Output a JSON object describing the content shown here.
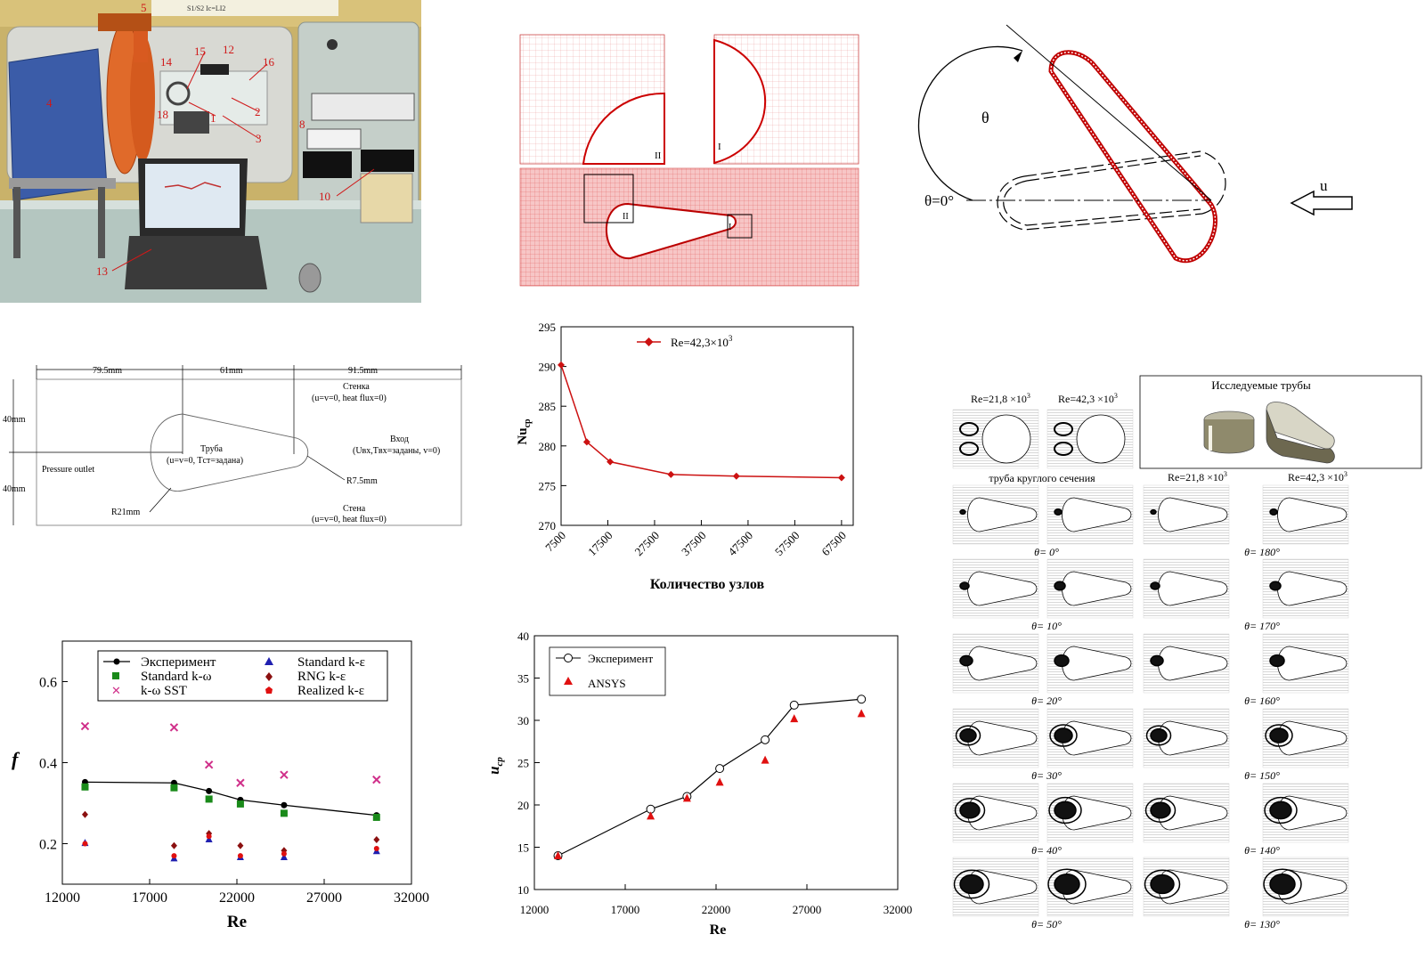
{
  "photo": {
    "labels": [
      "5",
      "15",
      "12",
      "14",
      "16",
      "4",
      "18",
      "1",
      "2",
      "3",
      "8",
      "13",
      "10"
    ],
    "ruler_text": "S1/S2   Ic=LI2"
  },
  "mesh": {
    "label_I": "I",
    "label_II": "II"
  },
  "geometry": {
    "theta": "θ",
    "theta0": "θ=0°",
    "u": "u"
  },
  "domain": {
    "dim1": "79.5mm",
    "dim2": "61mm",
    "dim3": "91.5mm",
    "h1": "40mm",
    "h2": "40mm",
    "wall_top": "Стенка",
    "wall_top_cond": "(u=v=0, heat flux=0)",
    "inlet": "Вход",
    "inlet_cond": "(Uвх,Tвх=заданы, v=0)",
    "tube": "Труба",
    "tube_cond": "(u=v=0, Tст=задана)",
    "outlet": "Pressure outlet",
    "r_small": "R7.5mm",
    "r_big": "R21mm",
    "wall_bot": "Стена",
    "wall_bot_cond": "(u=v=0, heat flux=0)"
  },
  "colors": {
    "red": "#cc1111",
    "magenta": "#d0308a",
    "green": "#1a8a1a",
    "blue": "#2020b0",
    "darkred": "#8b1010",
    "brightred": "#e01010"
  },
  "charts": {
    "nu": {
      "type": "line",
      "ylabel": "Nu",
      "ylabel_sub": "cp",
      "xlabel": "Количество узлов",
      "legend": "Re=42,3×10",
      "legend_sup": "3",
      "xticks": [
        "7500",
        "17500",
        "27500",
        "37500",
        "47500",
        "57500",
        "67500"
      ],
      "yticks": [
        "270",
        "275",
        "280",
        "285",
        "290",
        "295"
      ],
      "xlim": [
        7500,
        70000
      ],
      "ylim": [
        270,
        295
      ],
      "series": [
        {
          "name": "Re=42,3×10³",
          "x": [
            7500,
            13000,
            18000,
            31000,
            45000,
            67500
          ],
          "y": [
            290.2,
            280.5,
            278,
            276.4,
            276.2,
            276
          ]
        }
      ]
    },
    "friction": {
      "type": "scatter",
      "ylabel": "f",
      "xlabel": "Re",
      "xticks": [
        "12000",
        "17000",
        "22000",
        "27000",
        "32000"
      ],
      "yticks": [
        "0.2",
        "0.4",
        "0.6"
      ],
      "xlim": [
        12000,
        32000
      ],
      "ylim": [
        0.1,
        0.7
      ],
      "x": [
        13300,
        18400,
        20400,
        22200,
        24700,
        30000
      ],
      "series": [
        {
          "name": "Эксперимент",
          "values": [
            0.352,
            0.35,
            0.33,
            0.308,
            0.295,
            0.27
          ]
        },
        {
          "name": "Standard k-ω",
          "values": [
            0.34,
            0.338,
            0.31,
            0.298,
            0.275,
            0.265
          ]
        },
        {
          "name": "k-ω SST",
          "values": [
            0.49,
            0.487,
            0.395,
            0.35,
            0.37,
            0.358
          ]
        },
        {
          "name": "Standard k-ε",
          "values": [
            0.203,
            0.165,
            0.212,
            0.168,
            0.168,
            0.183
          ]
        },
        {
          "name": "RNG k-ε",
          "values": [
            0.272,
            0.195,
            0.225,
            0.195,
            0.183,
            0.21
          ]
        },
        {
          "name": "Realized k-ε",
          "values": [
            0.2,
            0.17,
            0.218,
            0.17,
            0.175,
            0.188
          ]
        }
      ]
    },
    "ucp": {
      "type": "line",
      "ylabel": "u",
      "ylabel_sub": "cp",
      "xlabel": "Re",
      "xticks": [
        "12000",
        "17000",
        "22000",
        "27000",
        "32000"
      ],
      "yticks": [
        "10",
        "15",
        "20",
        "25",
        "30",
        "35",
        "40"
      ],
      "xlim": [
        12000,
        32000
      ],
      "ylim": [
        10,
        40
      ],
      "series": [
        {
          "name": "Эксперимент",
          "x": [
            13300,
            18400,
            20400,
            22200,
            24700,
            26300,
            30000
          ],
          "y": [
            14,
            19.5,
            21,
            24.3,
            27.7,
            31.8,
            32.5
          ]
        },
        {
          "name": "ANSYS",
          "x": [
            13300,
            18400,
            20400,
            22200,
            24700,
            26300,
            30000
          ],
          "y": [
            14,
            18.7,
            20.8,
            22.7,
            25.3,
            30.2,
            30.8
          ]
        }
      ]
    }
  },
  "streamlines": {
    "re1": "Re=21,8 ×10",
    "re2": "Re=42,3 ×10",
    "sup": "3",
    "box_title": "Исследуемые трубы",
    "round_title": "труба круглого сечения",
    "angles_left": [
      "θ= 0°",
      "θ= 10°",
      "θ= 20°",
      "θ= 30°",
      "θ= 40°",
      "θ= 50°"
    ],
    "angles_right": [
      "θ= 180°",
      "θ= 170°",
      "θ= 160°",
      "θ= 150°",
      "θ= 140°",
      "θ= 130°"
    ]
  }
}
